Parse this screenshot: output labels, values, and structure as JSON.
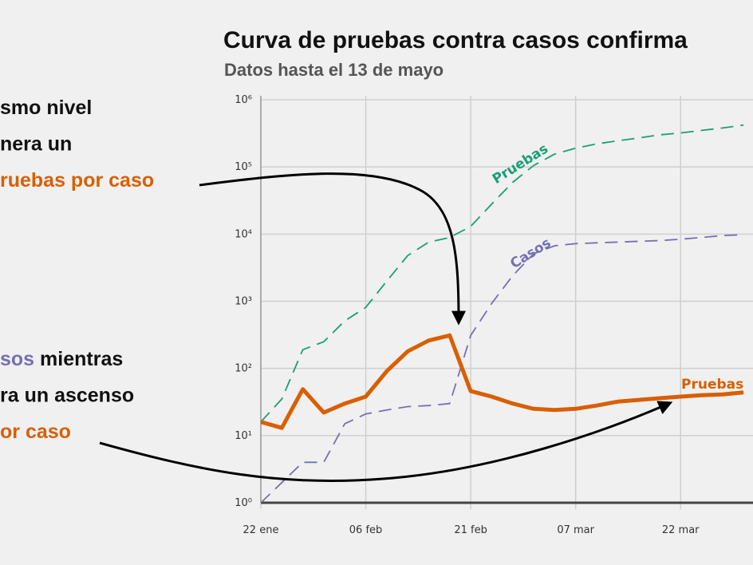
{
  "chart_data": {
    "type": "line",
    "title": "Curva de pruebas contra casos confirma",
    "subtitle": "Datos hasta el 13 de mayo",
    "log_y": true,
    "grid": true,
    "x": [
      "22 ene",
      "25 ene",
      "28 ene",
      "31 ene",
      "03 feb",
      "06 feb",
      "09 feb",
      "12 feb",
      "15 feb",
      "18 feb",
      "21 feb",
      "24 feb",
      "27 feb",
      "01 mar",
      "04 mar",
      "07 mar",
      "10 mar",
      "13 mar",
      "16 mar",
      "19 mar",
      "22 mar",
      "25 mar",
      "28 mar",
      "31 mar"
    ],
    "xticks": [
      "22 ene",
      "06 feb",
      "21 feb",
      "07 mar",
      "22 mar"
    ],
    "ylim": [
      1,
      1000000
    ],
    "yticks": [
      {
        "value": 1,
        "label": "10⁰"
      },
      {
        "value": 10,
        "label": "10¹"
      },
      {
        "value": 100,
        "label": "10²"
      },
      {
        "value": 1000,
        "label": "10³"
      },
      {
        "value": 10000,
        "label": "10⁴"
      },
      {
        "value": 100000,
        "label": "10⁵"
      },
      {
        "value": 1000000,
        "label": "10⁶"
      }
    ],
    "series": [
      {
        "name": "Pruebas",
        "color": "#1b9e77",
        "dashed": true,
        "values": [
          16,
          35,
          190,
          250,
          510,
          810,
          2000,
          4800,
          7600,
          8900,
          13000,
          28000,
          59000,
          105000,
          155000,
          190000,
          220000,
          245000,
          270000,
          300000,
          320000,
          350000,
          380000,
          420000
        ]
      },
      {
        "name": "Casos",
        "color": "#7570b3",
        "dashed": true,
        "values": [
          1,
          2,
          4,
          4,
          15,
          21,
          24,
          27,
          28,
          30,
          310,
          930,
          2400,
          5100,
          6700,
          7200,
          7400,
          7600,
          7800,
          8000,
          8400,
          8900,
          9500,
          9800
        ]
      },
      {
        "name": "Pruebas",
        "color": "#d95f02",
        "dashed": false,
        "values": [
          16,
          13,
          49,
          22,
          30,
          38,
          91,
          180,
          260,
          310,
          46,
          38,
          30,
          25,
          24,
          25,
          28,
          32,
          34,
          36,
          38,
          40,
          41,
          44
        ]
      }
    ],
    "annotations": [
      {
        "lines": [
          [
            {
              "text": "smo nivel"
            }
          ],
          [
            {
              "text": "nera un"
            }
          ],
          [
            {
              "text": "ruebas por caso",
              "color": "#d95f02"
            }
          ]
        ]
      },
      {
        "lines": [
          [
            {
              "text": "sos",
              "color": "#7570b3"
            },
            {
              "text": " mientras"
            }
          ],
          [
            {
              "text": "ra un ascenso"
            }
          ],
          [
            {
              "text": "or caso",
              "color": "#d95f02"
            }
          ]
        ]
      }
    ]
  }
}
